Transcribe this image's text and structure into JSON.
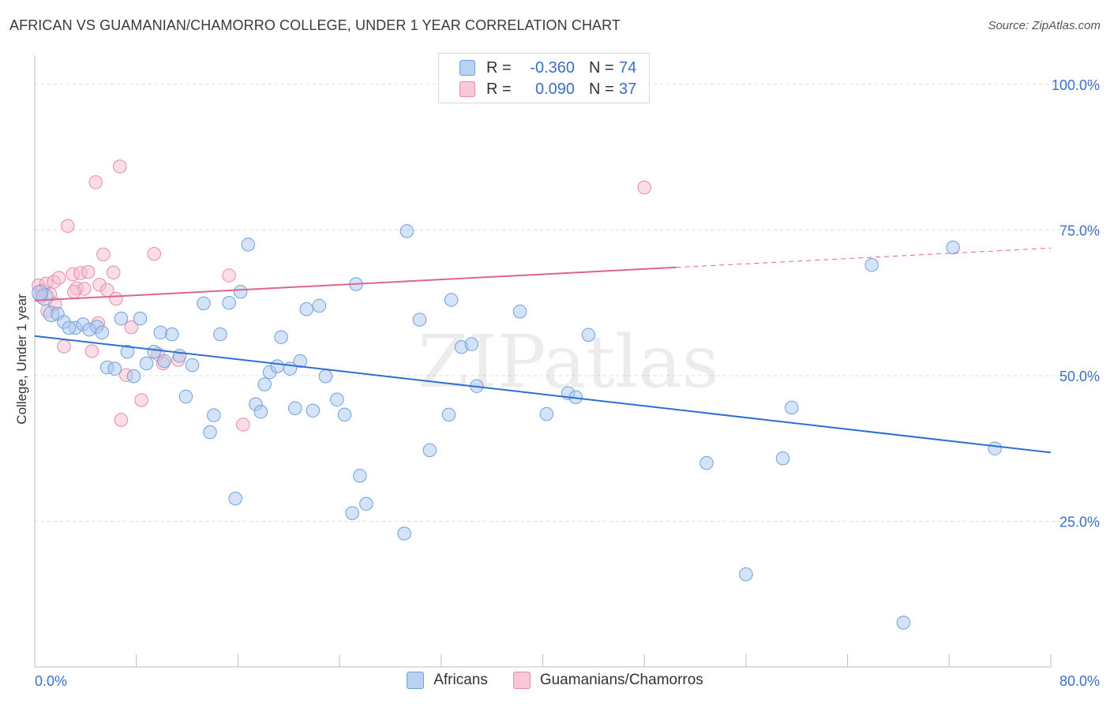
{
  "title": "AFRICAN VS GUAMANIAN/CHAMORRO COLLEGE, UNDER 1 YEAR CORRELATION CHART",
  "source": "Source: ZipAtlas.com",
  "watermark": "ZIPatlas",
  "legend_top": {
    "rows": [
      {
        "r_label": "R =",
        "r_value": "-0.360",
        "n_label": "N =",
        "n_value": "74"
      },
      {
        "r_label": "R =",
        "r_value": "0.090",
        "n_label": "N =",
        "n_value": "37"
      }
    ]
  },
  "bottom_legend": {
    "africans": "Africans",
    "guamanians": "Guamanians/Chamorros"
  },
  "colors": {
    "blue_fill": "#a9c8f0",
    "blue_stroke": "#6f9fdc",
    "blue_line": "#2e6fd1",
    "pink_fill": "#f6bccd",
    "pink_stroke": "#e88aa8",
    "pink_line": "#e0648f",
    "axis_label_blue": "#3b6fc8"
  },
  "chart_data": {
    "type": "scatter",
    "title": "AFRICAN VS GUAMANIAN/CHAMORRO COLLEGE, UNDER 1 YEAR CORRELATION CHART",
    "xlabel": "",
    "ylabel": "College, Under 1 year",
    "xlim": [
      0,
      80
    ],
    "ylim": [
      0,
      105
    ],
    "x_tick_labels": [
      "0.0%",
      "80.0%"
    ],
    "y_tick_labels": [
      "25.0%",
      "50.0%",
      "75.0%",
      "100.0%"
    ],
    "y_ticks": [
      25,
      50,
      75,
      100
    ],
    "grid": true,
    "series": [
      {
        "name": "Africans",
        "r": -0.36,
        "n": 74,
        "trend": {
          "x0": 0,
          "y0": 56.8,
          "x1": 80,
          "y1": 36.8,
          "dashed_from": null
        },
        "points": [
          [
            0.8,
            63.5
          ],
          [
            1.3,
            60.6
          ],
          [
            1.8,
            60.6
          ],
          [
            2.3,
            59.2
          ],
          [
            3.2,
            58.2
          ],
          [
            3.8,
            58.8
          ],
          [
            4.3,
            57.9
          ],
          [
            4.9,
            58.4
          ],
          [
            5.3,
            57.4
          ],
          [
            5.7,
            51.4
          ],
          [
            6.3,
            51.2
          ],
          [
            6.8,
            59.8
          ],
          [
            7.3,
            54.1
          ],
          [
            7.8,
            49.9
          ],
          [
            8.3,
            59.8
          ],
          [
            8.8,
            52.1
          ],
          [
            9.4,
            54.1
          ],
          [
            9.9,
            57.4
          ],
          [
            10.2,
            52.5
          ],
          [
            10.8,
            57.1
          ],
          [
            11.4,
            53.4
          ],
          [
            11.9,
            46.4
          ],
          [
            12.4,
            51.8
          ],
          [
            13.3,
            62.4
          ],
          [
            13.8,
            40.3
          ],
          [
            14.1,
            43.2
          ],
          [
            14.6,
            57.1
          ],
          [
            15.3,
            62.5
          ],
          [
            15.8,
            28.9
          ],
          [
            16.2,
            64.4
          ],
          [
            16.8,
            72.5
          ],
          [
            17.4,
            45.1
          ],
          [
            17.8,
            43.8
          ],
          [
            18.1,
            48.5
          ],
          [
            18.5,
            50.6
          ],
          [
            19.1,
            51.6
          ],
          [
            19.4,
            56.6
          ],
          [
            20.1,
            51.2
          ],
          [
            20.5,
            44.4
          ],
          [
            20.9,
            52.5
          ],
          [
            21.4,
            61.4
          ],
          [
            21.9,
            44.0
          ],
          [
            22.4,
            62.0
          ],
          [
            22.9,
            49.9
          ],
          [
            23.8,
            45.9
          ],
          [
            24.4,
            43.3
          ],
          [
            25.3,
            65.7
          ],
          [
            25.6,
            32.8
          ],
          [
            26.1,
            28.0
          ],
          [
            25.0,
            26.4
          ],
          [
            29.1,
            22.9
          ],
          [
            29.3,
            74.8
          ],
          [
            30.3,
            59.6
          ],
          [
            31.1,
            37.2
          ],
          [
            32.6,
            43.3
          ],
          [
            32.8,
            63.0
          ],
          [
            33.6,
            54.9
          ],
          [
            34.4,
            55.4
          ],
          [
            34.8,
            48.2
          ],
          [
            38.2,
            61.0
          ],
          [
            40.3,
            43.4
          ],
          [
            42.0,
            47.0
          ],
          [
            42.6,
            46.3
          ],
          [
            43.6,
            57.0
          ],
          [
            52.9,
            35.0
          ],
          [
            56.0,
            15.9
          ],
          [
            58.9,
            35.8
          ],
          [
            59.6,
            44.5
          ],
          [
            65.9,
            69.0
          ],
          [
            68.4,
            7.6
          ],
          [
            72.3,
            72.0
          ],
          [
            75.6,
            37.5
          ],
          [
            0.4,
            64.2
          ],
          [
            2.7,
            58.2
          ]
        ],
        "sizes": [
          14,
          13,
          11,
          11,
          11,
          11,
          11,
          11,
          11,
          11,
          11,
          11,
          11,
          11,
          11,
          11,
          11,
          11,
          11,
          11,
          11,
          11,
          11,
          11,
          11,
          11,
          11,
          11,
          11,
          11,
          11,
          11,
          11,
          11,
          11,
          11,
          11,
          11,
          11,
          11,
          11,
          11,
          11,
          11,
          11,
          11,
          11,
          11,
          11,
          11,
          11,
          11,
          11,
          11,
          11,
          11,
          11,
          11,
          11,
          11,
          11,
          11,
          11,
          11,
          11,
          11,
          11,
          11,
          11,
          11,
          11,
          11,
          13,
          11
        ]
      },
      {
        "name": "Guamanians/Chamorros",
        "r": 0.09,
        "n": 37,
        "trend": {
          "x0": 0,
          "y0": 62.9,
          "x1": 80,
          "y1": 71.9,
          "dashed_from": 50.5
        },
        "points": [
          [
            0.3,
            65.5
          ],
          [
            0.6,
            64.6
          ],
          [
            0.9,
            65.8
          ],
          [
            1.2,
            64.0
          ],
          [
            1.5,
            66.1
          ],
          [
            1.9,
            66.8
          ],
          [
            2.3,
            55.0
          ],
          [
            2.6,
            75.7
          ],
          [
            3.0,
            67.4
          ],
          [
            3.3,
            65.0
          ],
          [
            3.6,
            67.6
          ],
          [
            3.9,
            64.9
          ],
          [
            4.2,
            67.8
          ],
          [
            4.5,
            54.2
          ],
          [
            4.8,
            83.2
          ],
          [
            5.1,
            65.6
          ],
          [
            5.4,
            70.8
          ],
          [
            5.7,
            64.7
          ],
          [
            6.2,
            67.7
          ],
          [
            6.4,
            63.2
          ],
          [
            6.7,
            85.9
          ],
          [
            6.8,
            42.4
          ],
          [
            7.2,
            50.1
          ],
          [
            7.6,
            58.3
          ],
          [
            8.4,
            45.8
          ],
          [
            9.4,
            70.9
          ],
          [
            9.7,
            53.7
          ],
          [
            10.1,
            52.1
          ],
          [
            11.3,
            52.7
          ],
          [
            15.3,
            67.2
          ],
          [
            16.4,
            41.6
          ],
          [
            48.0,
            82.3
          ],
          [
            1.0,
            61.1
          ],
          [
            1.6,
            62.3
          ],
          [
            3.1,
            64.4
          ],
          [
            5.0,
            59.0
          ],
          [
            0.5,
            63.6
          ]
        ],
        "sizes": [
          11,
          11,
          11,
          11,
          11,
          11,
          11,
          11,
          11,
          11,
          11,
          11,
          11,
          11,
          11,
          11,
          11,
          11,
          11,
          11,
          11,
          11,
          11,
          11,
          11,
          11,
          11,
          11,
          11,
          11,
          11,
          11,
          11,
          11,
          11,
          11,
          11
        ]
      }
    ]
  }
}
